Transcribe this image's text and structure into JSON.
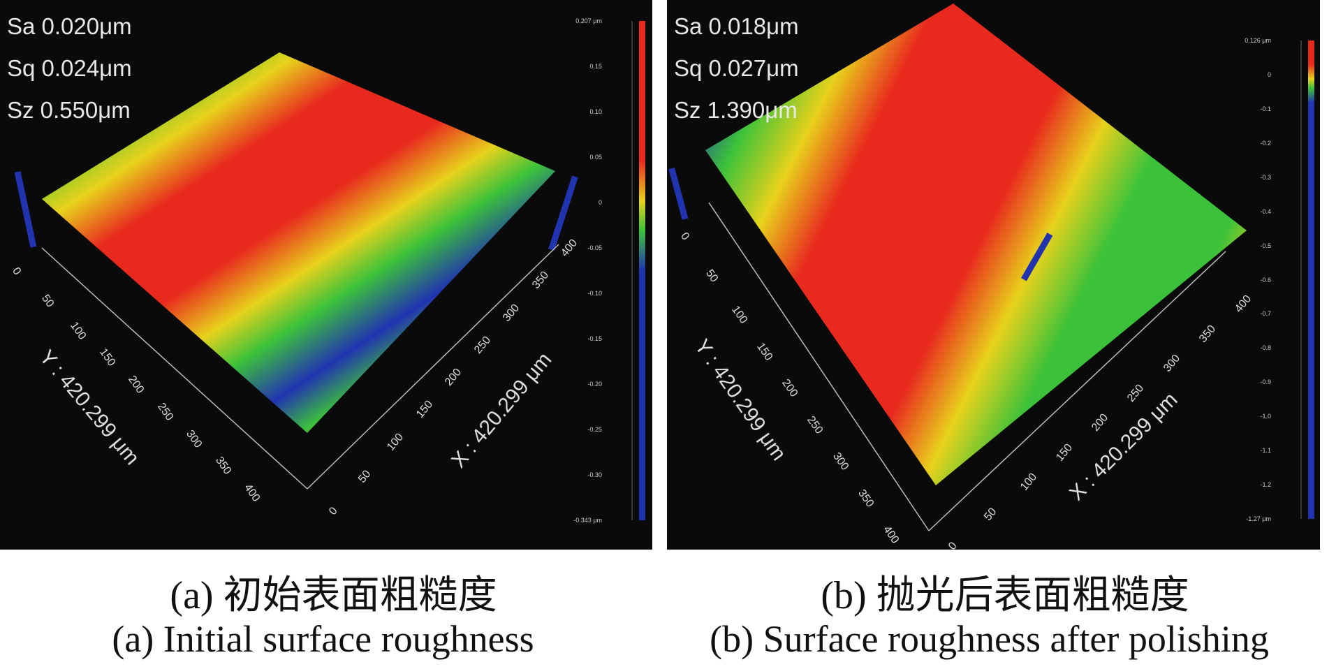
{
  "panels": [
    {
      "id": "a",
      "stats": [
        "Sa 0.020μm",
        "Sq 0.024μm",
        "Sz 0.550μm"
      ],
      "y_axis_label": "Y : 420.299 μm",
      "x_axis_label": "X : 420.299 μm",
      "y_ticks": [
        "0",
        "50",
        "100",
        "150",
        "200",
        "250",
        "300",
        "350",
        "400"
      ],
      "x_ticks": [
        "0",
        "50",
        "100",
        "150",
        "200",
        "250",
        "300",
        "350",
        "400"
      ],
      "scale_ticks": [
        "0.207 μm",
        "0.15",
        "0.10",
        "0.05",
        "0",
        "-0.05",
        "-0.10",
        "-0.15",
        "-0.20",
        "-0.25",
        "-0.30",
        "-0.343 μm"
      ],
      "caption_cn": "(a)  初始表面粗糙度",
      "caption_en": "(a)  Initial surface roughness"
    },
    {
      "id": "b",
      "stats": [
        "Sa 0.018μm",
        "Sq 0.027μm",
        "Sz 1.390μm"
      ],
      "y_axis_label": "Y : 420.299 μm",
      "x_axis_label": "X : 420.299 μm",
      "y_ticks": [
        "0",
        "50",
        "100",
        "150",
        "200",
        "250",
        "300",
        "350",
        "400"
      ],
      "x_ticks": [
        "0",
        "50",
        "100",
        "150",
        "200",
        "250",
        "300",
        "350",
        "400"
      ],
      "scale_ticks": [
        "0.126 μm",
        "0",
        "-0.1",
        "-0.2",
        "-0.3",
        "-0.4",
        "-0.5",
        "-0.6",
        "-0.7",
        "-0.8",
        "-0.9",
        "-1.0",
        "-1.1",
        "-1.2",
        "-1.27 μm"
      ],
      "caption_cn": "(b)  抛光后表面粗糙度",
      "caption_en": "(b)  Surface roughness after polishing"
    }
  ],
  "colors": {
    "red": "#e82a1e",
    "yellow": "#e8d21c",
    "green": "#3cc23a",
    "blue": "#2233b0",
    "pink": "#f08080"
  }
}
